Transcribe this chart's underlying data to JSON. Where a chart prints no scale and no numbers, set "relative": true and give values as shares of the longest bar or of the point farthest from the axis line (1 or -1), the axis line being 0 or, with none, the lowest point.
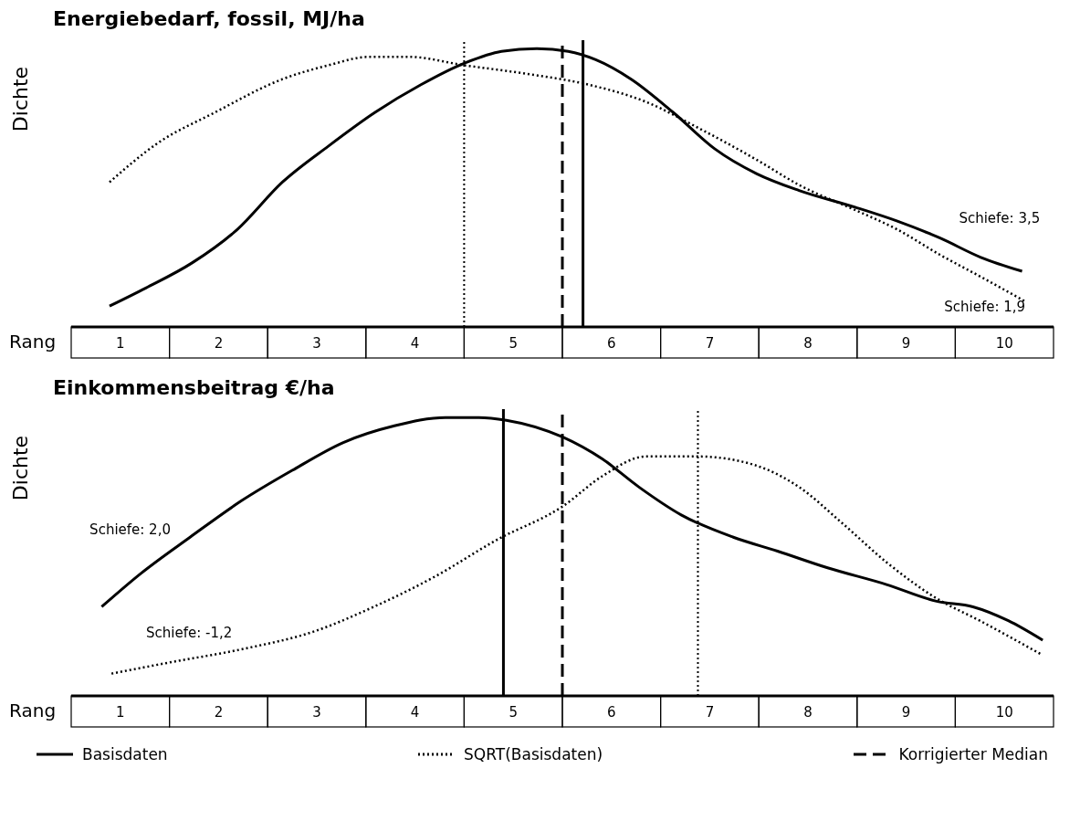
{
  "chart_data": [
    {
      "type": "line",
      "title": "Energiebedarf, fossil, MJ/ha",
      "ylabel": "Dichte",
      "xlabel": "Rang",
      "relative": true,
      "tick_labels": "x",
      "legend": false,
      "xlim": [
        0,
        10
      ],
      "xticks": [
        {
          "value": 0.5,
          "label": "1"
        },
        {
          "value": 1.5,
          "label": "2"
        },
        {
          "value": 2.5,
          "label": "3"
        },
        {
          "value": 3.5,
          "label": "4"
        },
        {
          "value": 4.5,
          "label": "5"
        },
        {
          "value": 5.5,
          "label": "6"
        },
        {
          "value": 6.5,
          "label": "7"
        },
        {
          "value": 7.5,
          "label": "8"
        },
        {
          "value": 8.5,
          "label": "9"
        },
        {
          "value": 9.5,
          "label": "10"
        }
      ],
      "series": [
        {
          "color": "#000000",
          "line_style": "solid",
          "x": [
            0.39,
            0.76,
            1.23,
            1.69,
            2.15,
            2.62,
            3.09,
            3.56,
            4.02,
            4.38,
            4.74,
            5.06,
            5.34,
            5.7,
            6.13,
            6.55,
            6.98,
            7.41,
            7.98,
            8.41,
            8.84,
            9.26,
            9.68
          ],
          "values": [
            0.075,
            0.14,
            0.23,
            0.35,
            0.52,
            0.65,
            0.77,
            0.87,
            0.95,
            0.99,
            1.0,
            0.99,
            0.96,
            0.89,
            0.77,
            0.64,
            0.55,
            0.49,
            0.43,
            0.38,
            0.32,
            0.25,
            0.2
          ]
        },
        {
          "color": "#000000",
          "line_style": "dotted",
          "x": [
            0.39,
            0.88,
            1.46,
            2.15,
            2.62,
            3.03,
            3.44,
            4.0,
            4.62,
            5.27,
            5.84,
            6.41,
            6.98,
            7.41,
            7.98,
            8.41,
            8.84,
            9.26,
            9.72
          ],
          "values": [
            0.52,
            0.66,
            0.77,
            0.89,
            0.94,
            0.97,
            0.97,
            0.94,
            0.91,
            0.87,
            0.81,
            0.71,
            0.6,
            0.51,
            0.42,
            0.35,
            0.26,
            0.18,
            0.09
          ]
        }
      ],
      "ref_lines": [
        {
          "axis": "x",
          "value": 5.21,
          "line_style": "solid",
          "color": "#000000"
        },
        {
          "axis": "x",
          "value": 4.0,
          "line_style": "dotted",
          "color": "#000000"
        },
        {
          "axis": "x",
          "value": 5.0,
          "line_style": "dashed",
          "color": "#000000"
        }
      ],
      "annotations": [
        "Schiefe: 3,5",
        "Schiefe: 1,9"
      ]
    },
    {
      "type": "line",
      "title": "Einkommensbeitrag €/ha",
      "ylabel": "Dichte",
      "xlabel": "Rang",
      "relative": true,
      "tick_labels": "x",
      "legend": "bottom",
      "xlim": [
        0,
        10
      ],
      "xticks": [
        {
          "value": 0.5,
          "label": "1"
        },
        {
          "value": 1.5,
          "label": "2"
        },
        {
          "value": 2.5,
          "label": "3"
        },
        {
          "value": 3.5,
          "label": "4"
        },
        {
          "value": 4.5,
          "label": "5"
        },
        {
          "value": 5.5,
          "label": "6"
        },
        {
          "value": 6.5,
          "label": "7"
        },
        {
          "value": 7.5,
          "label": "8"
        },
        {
          "value": 8.5,
          "label": "9"
        },
        {
          "value": 9.5,
          "label": "10"
        }
      ],
      "series": [
        {
          "name": "Basisdaten",
          "color": "#000000",
          "line_style": "solid",
          "x": [
            0.31,
            0.71,
            1.21,
            1.73,
            2.25,
            2.77,
            3.29,
            3.81,
            4.15,
            4.43,
            5.0,
            5.41,
            5.78,
            6.21,
            6.74,
            7.19,
            7.7,
            8.3,
            8.81,
            9.18,
            9.54,
            9.89
          ],
          "values": [
            0.32,
            0.44,
            0.57,
            0.7,
            0.81,
            0.91,
            0.97,
            1.0,
            1.0,
            0.99,
            0.93,
            0.85,
            0.75,
            0.65,
            0.57,
            0.52,
            0.46,
            0.4,
            0.34,
            0.32,
            0.27,
            0.2
          ]
        },
        {
          "name": "SQRT(Basisdaten)",
          "color": "#000000",
          "line_style": "dotted",
          "x": [
            0.41,
            1.0,
            1.77,
            2.46,
            3.08,
            3.71,
            4.33,
            5.0,
            5.41,
            5.85,
            6.38,
            6.95,
            7.41,
            7.85,
            8.3,
            8.81,
            9.25,
            9.87
          ],
          "values": [
            0.08,
            0.12,
            0.17,
            0.23,
            0.32,
            0.43,
            0.56,
            0.68,
            0.79,
            0.86,
            0.86,
            0.83,
            0.75,
            0.62,
            0.48,
            0.35,
            0.27,
            0.15
          ]
        }
      ],
      "ref_lines": [
        {
          "axis": "x",
          "value": 4.4,
          "line_style": "solid",
          "color": "#000000"
        },
        {
          "axis": "x",
          "value": 6.38,
          "line_style": "dotted",
          "color": "#000000"
        },
        {
          "axis": "x",
          "value": 5.0,
          "line_style": "dashed",
          "color": "#000000",
          "label": "Korrigierter Median"
        }
      ],
      "annotations": [
        "Schiefe: 2,0",
        "Schiefe: -1,2"
      ]
    }
  ]
}
